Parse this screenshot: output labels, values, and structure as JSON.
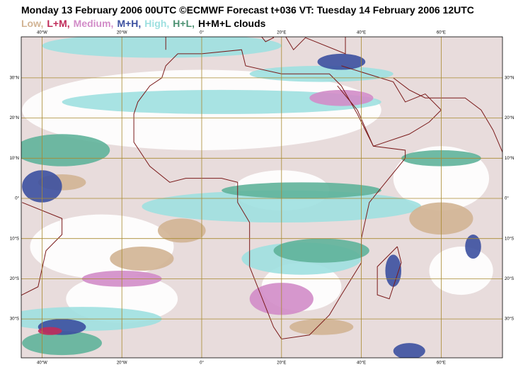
{
  "header": {
    "title": "Monday 13 February 2006 00UTC ©ECMWF Forecast t+036 VT: Tuesday 14 February 2006 12UTC",
    "legend": [
      {
        "label": "Low,",
        "color": "#d2b494"
      },
      {
        "label": "L+M,",
        "color": "#c02c5a"
      },
      {
        "label": "Medium,",
        "color": "#d28cc8"
      },
      {
        "label": "M+H,",
        "color": "#3c50a0"
      },
      {
        "label": "High,",
        "color": "#9ee0e0"
      },
      {
        "label": "H+L,",
        "color": "#4a9070"
      },
      {
        "label": "H+M+L clouds",
        "color": "#000000"
      }
    ]
  },
  "map": {
    "lon_labels": [
      "40°W",
      "20°W",
      "0°",
      "20°E",
      "40°E",
      "60°E"
    ],
    "lat_labels": [
      "30°N",
      "20°N",
      "10°N",
      "0°",
      "10°S",
      "20°S",
      "30°S"
    ]
  }
}
